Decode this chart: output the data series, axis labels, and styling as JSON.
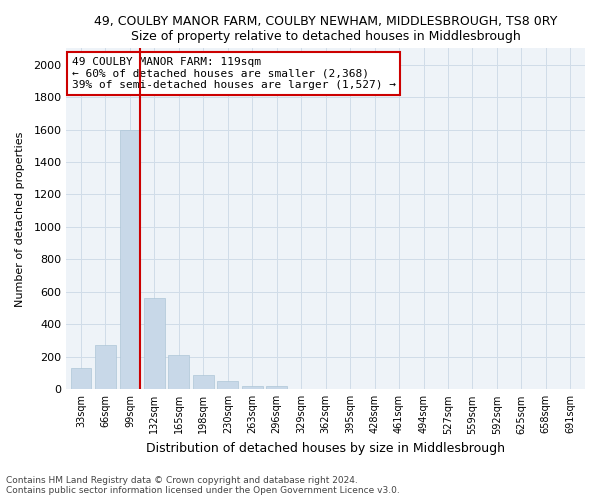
{
  "title": "49, COULBY MANOR FARM, COULBY NEWHAM, MIDDLESBROUGH, TS8 0RY",
  "subtitle": "Size of property relative to detached houses in Middlesbrough",
  "xlabel": "Distribution of detached houses by size in Middlesbrough",
  "ylabel": "Number of detached properties",
  "footnote1": "Contains HM Land Registry data © Crown copyright and database right 2024.",
  "footnote2": "Contains public sector information licensed under the Open Government Licence v3.0.",
  "annotation_line1": "49 COULBY MANOR FARM: 119sqm",
  "annotation_line2": "← 60% of detached houses are smaller (2,368)",
  "annotation_line3": "39% of semi-detached houses are larger (1,527) →",
  "bar_color": "#c8d8e8",
  "bar_edge_color": "#aec6d8",
  "line_color": "#cc0000",
  "annotation_box_edge_color": "#cc0000",
  "categories": [
    "33sqm",
    "66sqm",
    "99sqm",
    "132sqm",
    "165sqm",
    "198sqm",
    "230sqm",
    "263sqm",
    "296sqm",
    "329sqm",
    "362sqm",
    "395sqm",
    "428sqm",
    "461sqm",
    "494sqm",
    "527sqm",
    "559sqm",
    "592sqm",
    "625sqm",
    "658sqm",
    "691sqm"
  ],
  "values": [
    130,
    270,
    1600,
    560,
    210,
    90,
    50,
    20,
    20,
    0,
    0,
    0,
    0,
    0,
    0,
    0,
    0,
    0,
    0,
    0,
    0
  ],
  "property_line_x": 2.42,
  "ylim": [
    0,
    2100
  ],
  "yticks": [
    0,
    200,
    400,
    600,
    800,
    1000,
    1200,
    1400,
    1600,
    1800,
    2000
  ],
  "grid_color": "#d0dce8",
  "bg_color": "#eef3f8"
}
